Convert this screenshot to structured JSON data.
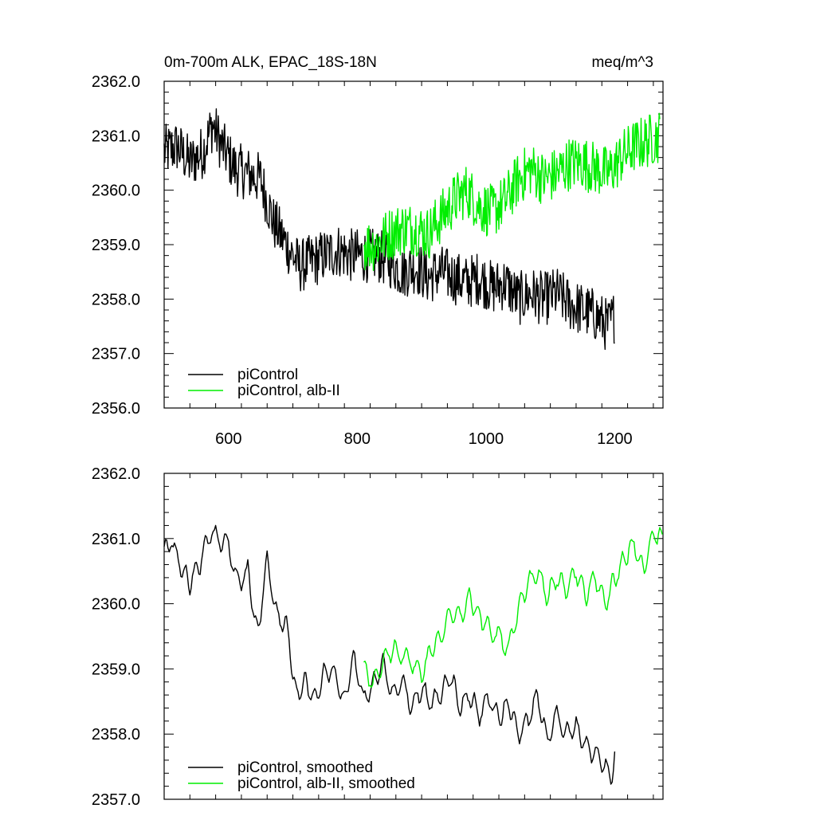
{
  "chart_data": [
    {
      "type": "line",
      "title": "0m-700m ALK, EPAC_18S-18N",
      "units": "meq/m^3",
      "xlim": [
        500,
        1275
      ],
      "ylim": [
        2356.0,
        2362.0
      ],
      "xticks": [
        600,
        800,
        1000,
        1200
      ],
      "xtick_labels": [
        "600",
        "800",
        "1000",
        "1200"
      ],
      "yticks": [
        2356.0,
        2357.0,
        2358.0,
        2359.0,
        2360.0,
        2361.0,
        2362.0
      ],
      "ytick_labels": [
        "2356.0",
        "2357.0",
        "2358.0",
        "2359.0",
        "2360.0",
        "2361.0",
        "2362.0"
      ],
      "legend_position": "bottom-left",
      "series": [
        {
          "name": "piControl",
          "color": "#000000",
          "x": [
            500,
            520,
            540,
            560,
            575,
            590,
            610,
            630,
            650,
            670,
            690,
            710,
            730,
            750,
            770,
            790,
            810,
            830,
            850,
            870,
            890,
            910,
            930,
            950,
            970,
            990,
            1010,
            1030,
            1050,
            1070,
            1090,
            1110,
            1130,
            1150,
            1170,
            1190,
            1200
          ],
          "values": [
            2360.7,
            2360.8,
            2360.5,
            2360.7,
            2361.2,
            2360.8,
            2360.4,
            2360.3,
            2360.2,
            2359.4,
            2359.0,
            2358.6,
            2358.7,
            2358.8,
            2358.9,
            2358.8,
            2358.8,
            2358.8,
            2358.7,
            2358.5,
            2358.6,
            2358.4,
            2358.5,
            2358.4,
            2358.3,
            2358.4,
            2358.2,
            2358.3,
            2358.0,
            2358.1,
            2358.0,
            2358.1,
            2357.9,
            2357.8,
            2357.7,
            2357.5,
            2357.7
          ],
          "noise": 0.5
        },
        {
          "name": "piControl, alb-II",
          "color": "#00ee00",
          "x": [
            810,
            830,
            850,
            870,
            890,
            910,
            930,
            950,
            970,
            990,
            1010,
            1030,
            1050,
            1070,
            1090,
            1110,
            1130,
            1150,
            1170,
            1190,
            1210,
            1230,
            1250,
            1270
          ],
          "values": [
            2359.0,
            2359.0,
            2359.2,
            2359.3,
            2359.3,
            2359.2,
            2359.5,
            2359.8,
            2360.0,
            2359.7,
            2359.6,
            2359.8,
            2360.2,
            2360.4,
            2360.2,
            2360.3,
            2360.5,
            2360.5,
            2360.4,
            2360.3,
            2360.6,
            2360.8,
            2360.9,
            2361.0
          ],
          "noise": 0.5
        }
      ]
    },
    {
      "type": "line",
      "title": "",
      "xlim": [
        500,
        1275
      ],
      "ylim": [
        2357.0,
        2362.0
      ],
      "xticks": [
        600,
        800,
        1000,
        1200
      ],
      "yticks": [
        2357.0,
        2358.0,
        2359.0,
        2360.0,
        2361.0,
        2362.0
      ],
      "ytick_labels": [
        "2357.0",
        "2358.0",
        "2359.0",
        "2360.0",
        "2361.0",
        "2362.0"
      ],
      "legend_position": "bottom-left",
      "series": [
        {
          "name": "piControl, smoothed",
          "color": "#000000",
          "x": [
            500,
            510,
            520,
            530,
            540,
            555,
            570,
            585,
            600,
            615,
            630,
            645,
            660,
            675,
            690,
            705,
            720,
            735,
            750,
            765,
            780,
            795,
            810,
            825,
            840,
            855,
            870,
            885,
            900,
            915,
            930,
            945,
            960,
            975,
            990,
            1005,
            1020,
            1035,
            1050,
            1065,
            1080,
            1095,
            1110,
            1125,
            1140,
            1155,
            1170,
            1185,
            1195,
            1200
          ],
          "values": [
            2360.8,
            2361.0,
            2360.7,
            2360.5,
            2360.3,
            2360.6,
            2361.1,
            2361.0,
            2360.9,
            2360.3,
            2360.5,
            2359.5,
            2360.7,
            2359.8,
            2359.7,
            2358.6,
            2358.8,
            2358.5,
            2359.0,
            2358.9,
            2358.5,
            2359.2,
            2358.5,
            2358.8,
            2359.1,
            2358.6,
            2358.8,
            2358.4,
            2358.7,
            2358.5,
            2358.6,
            2358.9,
            2358.4,
            2358.6,
            2358.3,
            2358.6,
            2358.2,
            2358.5,
            2358.0,
            2358.2,
            2358.6,
            2357.9,
            2358.3,
            2358.0,
            2358.1,
            2357.8,
            2357.7,
            2357.5,
            2357.3,
            2357.7
          ],
          "noise": 0.15
        },
        {
          "name": "piControl, alb-II, smoothed",
          "color": "#00ee00",
          "x": [
            810,
            825,
            840,
            855,
            870,
            885,
            900,
            915,
            930,
            945,
            960,
            975,
            990,
            1005,
            1020,
            1035,
            1050,
            1065,
            1080,
            1095,
            1110,
            1125,
            1140,
            1155,
            1170,
            1185,
            1200,
            1215,
            1230,
            1245,
            1260,
            1275
          ],
          "values": [
            2359.0,
            2358.8,
            2359.1,
            2359.3,
            2359.2,
            2359.1,
            2358.9,
            2359.3,
            2359.5,
            2359.9,
            2359.8,
            2360.1,
            2359.8,
            2359.6,
            2359.5,
            2359.3,
            2359.9,
            2360.3,
            2360.5,
            2360.1,
            2360.4,
            2360.2,
            2360.5,
            2360.1,
            2360.4,
            2360.0,
            2360.4,
            2360.7,
            2360.9,
            2360.5,
            2361.1,
            2361.0
          ],
          "noise": 0.15
        }
      ]
    }
  ]
}
